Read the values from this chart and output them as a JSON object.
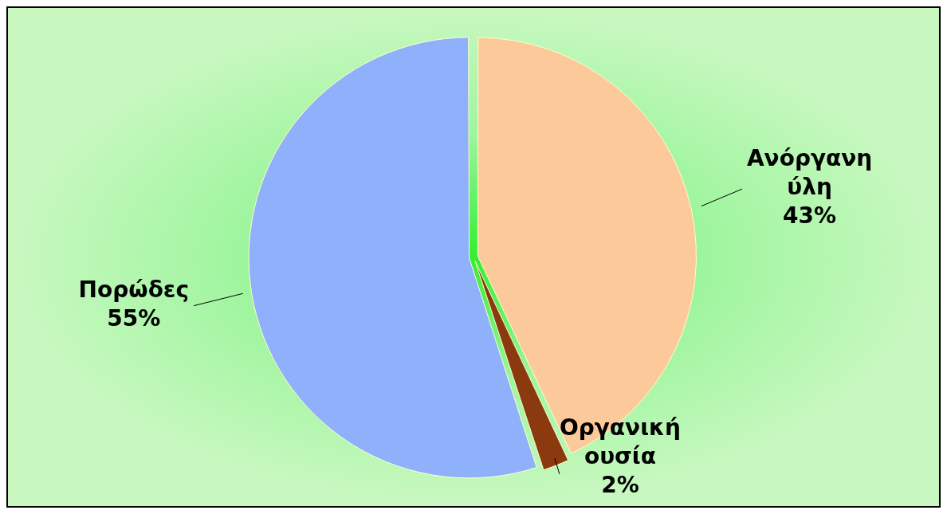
{
  "chart_data": {
    "type": "pie",
    "categories": [
      "Ανόργανη ύλη",
      "Οργανική ουσία",
      "Πορώδες"
    ],
    "values": [
      43,
      2,
      55
    ],
    "value_labels": [
      "43%",
      "2%",
      "55%"
    ],
    "colors": [
      "#fbc99a",
      "#8b3a0f",
      "#8fb0fb"
    ],
    "legend": false
  }
}
